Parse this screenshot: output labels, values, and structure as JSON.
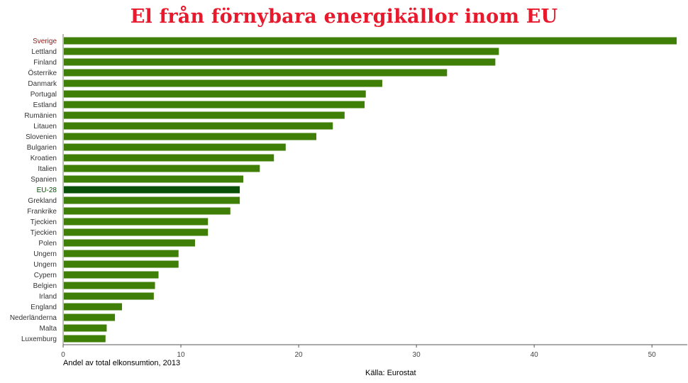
{
  "title": "El från förnybara energikällor inom EU",
  "colors": {
    "title": "#e8192c",
    "bar": "#3f7e07",
    "bar_highlight": "#0a4f07",
    "label_sverige": "#8b1a1a",
    "label_eu": "#0a4f07",
    "label": "#333333"
  },
  "xlabel": "Andel av total elkonsumtion, 2013",
  "source": "Källa: Eurostat",
  "chart_data": {
    "type": "bar",
    "orientation": "horizontal",
    "categories": [
      "Sverige",
      "Lettland",
      "Finland",
      "Österrike",
      "Danmark",
      "Portugal",
      "Estland",
      "Rumänien",
      "Litauen",
      "Slovenien",
      "Bulgarien",
      "Kroatien",
      "Italien",
      "Spanien",
      "EU-28",
      "Grekland",
      "Frankrike",
      "Tjeckien",
      "Tjeckien",
      "Polen",
      "Ungern",
      "Ungern",
      "Cypern",
      "Belgien",
      "Irland",
      "England",
      "Nederländerna",
      "Malta",
      "Luxemburg"
    ],
    "values": [
      52.1,
      37.0,
      36.7,
      32.6,
      27.1,
      25.7,
      25.6,
      23.9,
      22.9,
      21.5,
      18.9,
      17.9,
      16.7,
      15.3,
      15.0,
      15.0,
      14.2,
      12.3,
      12.3,
      11.2,
      9.8,
      9.8,
      8.1,
      7.8,
      7.7,
      5.0,
      4.4,
      3.7,
      3.6
    ],
    "highlight": [
      "Sverige",
      "EU-28"
    ],
    "xlim": [
      0,
      53
    ],
    "xticks": [
      0,
      10,
      20,
      30,
      40,
      50
    ],
    "xlabel": "Andel av total elkonsumtion, 2013",
    "grid": false
  }
}
